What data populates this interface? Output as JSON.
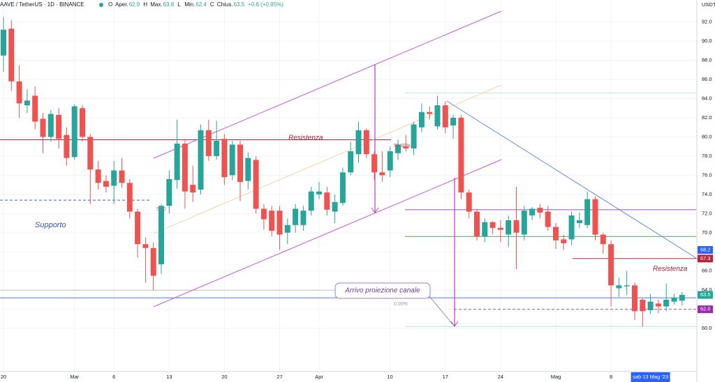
{
  "chart_data": {
    "type": "candlestick",
    "symbol": "AAVE / TetherUS · 1D · BINANCE",
    "ohlc_legend": [
      {
        "key": "O",
        "label": "Aper.",
        "value": 62.9
      },
      {
        "key": "H",
        "label": "Max.",
        "value": 63.8
      },
      {
        "key": "L",
        "label": "Min.",
        "value": 62.4
      },
      {
        "key": "C",
        "label": "Chius.",
        "value": 63.5
      }
    ],
    "change": "+0.6 (+0.95%)",
    "currency": "USDT",
    "x": [
      "2023-02-20",
      "2023-02-21",
      "2023-02-22",
      "2023-02-23",
      "2023-02-24",
      "2023-02-25",
      "2023-02-26",
      "2023-02-27",
      "2023-02-28",
      "2023-03-01",
      "2023-03-02",
      "2023-03-03",
      "2023-03-04",
      "2023-03-05",
      "2023-03-06",
      "2023-03-07",
      "2023-03-08",
      "2023-03-09",
      "2023-03-10",
      "2023-03-11",
      "2023-03-12",
      "2023-03-13",
      "2023-03-14",
      "2023-03-15",
      "2023-03-16",
      "2023-03-17",
      "2023-03-18",
      "2023-03-19",
      "2023-03-20",
      "2023-03-21",
      "2023-03-22",
      "2023-03-23",
      "2023-03-24",
      "2023-03-25",
      "2023-03-26",
      "2023-03-27",
      "2023-03-28",
      "2023-03-29",
      "2023-03-30",
      "2023-03-31",
      "2023-04-01",
      "2023-04-02",
      "2023-04-03",
      "2023-04-04",
      "2023-04-05",
      "2023-04-06",
      "2023-04-07",
      "2023-04-08",
      "2023-04-09",
      "2023-04-10",
      "2023-04-11",
      "2023-04-12",
      "2023-04-13",
      "2023-04-14",
      "2023-04-15",
      "2023-04-16",
      "2023-04-17",
      "2023-04-18",
      "2023-04-19",
      "2023-04-20",
      "2023-04-21",
      "2023-04-22",
      "2023-04-23",
      "2023-04-24",
      "2023-04-25",
      "2023-04-26",
      "2023-04-27",
      "2023-04-28",
      "2023-04-29",
      "2023-04-30",
      "2023-05-01",
      "2023-05-02",
      "2023-05-03",
      "2023-05-04",
      "2023-05-05",
      "2023-05-06",
      "2023-05-07",
      "2023-05-08",
      "2023-05-09",
      "2023-05-10",
      "2023-05-11",
      "2023-05-12",
      "2023-05-13",
      "2023-05-14",
      "2023-05-15",
      "2023-05-16",
      "2023-05-17"
    ],
    "open": [
      88.5,
      91.3,
      85.8,
      83.3,
      84.3,
      81.9,
      80,
      82.3,
      80.2,
      77.9,
      83,
      80,
      76.6,
      75.4,
      74.9,
      76.5,
      75.2,
      72.2,
      68.8,
      68.4,
      66.7,
      72.8,
      75.5,
      79.3,
      75,
      74.5,
      80.7,
      78,
      79.8,
      76,
      79.2,
      75.4,
      77.6,
      72.5,
      72.3,
      72.3,
      70,
      70.8,
      70.8,
      72.3,
      74,
      74.2,
      72.2,
      73.1,
      76.3,
      78.2,
      80.7,
      78.2,
      76.3,
      76.5,
      78.3,
      79,
      78.8,
      81,
      82.6,
      81.1,
      83.3,
      81.2,
      82,
      74.2,
      72.2,
      69.6,
      71.1,
      70.5,
      69.8,
      71.3,
      69.8,
      71.8,
      72.6,
      72.2,
      70.6,
      69.3,
      69.3,
      71,
      70.8,
      73.5,
      69.8,
      68.8,
      64.2,
      64.4,
      64.5,
      63,
      61.9,
      62.6,
      62.3,
      62.8,
      62.9
    ],
    "high": [
      92.5,
      92.2,
      87.5,
      85,
      85.3,
      82.5,
      82.8,
      83,
      81,
      83.4,
      83.3,
      80.3,
      77.5,
      76,
      77.5,
      77.8,
      75.6,
      72.5,
      69.5,
      69,
      73,
      76.5,
      81.8,
      79.8,
      77,
      81.3,
      81.8,
      81.7,
      80.3,
      79.6,
      79.6,
      78.4,
      78,
      73,
      72.8,
      72.8,
      71.5,
      73,
      72.8,
      74.8,
      75.3,
      74.8,
      74,
      76.8,
      79.5,
      81.6,
      80.9,
      78.5,
      78.5,
      79,
      79.7,
      80.2,
      81.6,
      83.5,
      83.2,
      84.3,
      83.7,
      82.3,
      82.3,
      74.5,
      72.5,
      71.5,
      71.2,
      71.3,
      71.8,
      74.8,
      72.8,
      72.7,
      73,
      72.8,
      71,
      69.8,
      72.2,
      72.1,
      74.3,
      73.8,
      70,
      69.2,
      65.3,
      66,
      64.8,
      63.2,
      63.6,
      63,
      64.7,
      63.6,
      63.8
    ],
    "low": [
      86.8,
      84.8,
      82,
      82.5,
      80.8,
      78.3,
      79.5,
      78.8,
      77,
      77.6,
      79.5,
      73,
      74.5,
      74.2,
      73,
      74.7,
      71.5,
      67.4,
      64.8,
      64,
      65.7,
      72,
      74.6,
      72.5,
      73.2,
      74,
      77.5,
      77.6,
      75,
      75.5,
      73.3,
      74.5,
      72,
      70.3,
      69.6,
      68.2,
      68.8,
      70,
      70.2,
      71.8,
      73.5,
      71.8,
      71,
      72.8,
      76,
      77.3,
      77.8,
      75.5,
      75.3,
      75.8,
      77.6,
      78.5,
      78.1,
      80.5,
      81.8,
      80.8,
      80.4,
      79.8,
      73.5,
      71.5,
      69.2,
      69,
      69.8,
      69,
      68.5,
      66.2,
      69.2,
      71.3,
      71.5,
      70.2,
      68.3,
      68.2,
      68.7,
      70.5,
      70.5,
      69.2,
      67.8,
      62.3,
      63.3,
      63.5,
      60.9,
      60.2,
      61.5,
      61.6,
      61.8,
      62.5,
      62.4
    ],
    "close": [
      91.2,
      85.8,
      83.5,
      83.8,
      81.6,
      80,
      82.4,
      79.8,
      77.8,
      83.2,
      80,
      76.6,
      75.2,
      74.8,
      76.5,
      75.2,
      72.2,
      68.8,
      68.4,
      65.5,
      72.8,
      75.6,
      79.3,
      74.3,
      74.2,
      80.7,
      78,
      79.6,
      75.8,
      79.2,
      75.3,
      77.8,
      72.5,
      71.4,
      70.2,
      69.8,
      70.8,
      72.5,
      72.3,
      74.3,
      74.3,
      72.4,
      73.2,
      76.3,
      78.5,
      80.7,
      78.2,
      76.3,
      76,
      78.5,
      79.2,
      78.8,
      81.3,
      82.6,
      82.4,
      83.3,
      81,
      82,
      74.2,
      72.2,
      69.6,
      71.1,
      70.5,
      70.3,
      71.3,
      70,
      72.3,
      72.5,
      72.1,
      70.6,
      69.2,
      68.9,
      71.8,
      71.3,
      73.5,
      69.8,
      68.8,
      64.5,
      64.5,
      64.5,
      61.8,
      61.8,
      62.8,
      62.3,
      63,
      63.2,
      63.5
    ],
    "up_color": "#26a69a",
    "down_color": "#ef5350",
    "ylim": [
      55.5,
      94.3
    ],
    "yticks": [
      {
        "value": 60,
        "label": "60.0"
      },
      {
        "value": 62,
        "label": "62.0"
      },
      {
        "value": 64,
        "label": "64.0"
      },
      {
        "value": 66,
        "label": "66.0"
      },
      {
        "value": 68,
        "label": "68.0"
      },
      {
        "value": 70,
        "label": "70.0"
      },
      {
        "value": 72,
        "label": "72.0"
      },
      {
        "value": 74,
        "label": "74.0"
      },
      {
        "value": 76,
        "label": "76.0"
      },
      {
        "value": 78,
        "label": "78.0"
      },
      {
        "value": 80,
        "label": "80.0"
      },
      {
        "value": 82,
        "label": "82.0"
      },
      {
        "value": 84,
        "label": "84.0"
      },
      {
        "value": 86,
        "label": "86.0"
      },
      {
        "value": 88,
        "label": "88.0"
      },
      {
        "value": 90,
        "label": "90.0"
      },
      {
        "value": 92,
        "label": "92.0"
      }
    ],
    "xticks": [
      {
        "value": "2023-02-20",
        "label": "20"
      },
      {
        "value": "2023-03-01",
        "label": "Mar"
      },
      {
        "value": "2023-03-06",
        "label": "6"
      },
      {
        "value": "2023-03-13",
        "label": "13"
      },
      {
        "value": "2023-03-20",
        "label": "20"
      },
      {
        "value": "2023-03-27",
        "label": "27"
      },
      {
        "value": "2023-04-01",
        "label": "Apr"
      },
      {
        "value": "2023-04-10",
        "label": "10"
      },
      {
        "value": "2023-04-17",
        "label": "17"
      },
      {
        "value": "2023-04-24",
        "label": "24"
      },
      {
        "value": "2023-05-01",
        "label": "Mag"
      },
      {
        "value": "2023-05-08",
        "label": "8"
      }
    ],
    "crosshair": {
      "x": "2023-05-13",
      "label": "sab 13 Mag '23"
    },
    "grid": true,
    "levels": [
      {
        "value": 79.7,
        "color": "#b2283a"
      },
      {
        "value": 73.4,
        "color": "#3b5fc0",
        "dashed": true
      },
      {
        "value": 84.6,
        "color": "#b9e3dc"
      },
      {
        "value": 72.4,
        "color": "#9c4fc4"
      },
      {
        "value": 69.6,
        "color": "#5a9e5a"
      },
      {
        "value": 67.3,
        "color": "#b2283a"
      },
      {
        "value": 63.2,
        "color": "#4a7fe0"
      },
      {
        "value": 62.0,
        "color": "#9c4fc4",
        "dashed": true
      },
      {
        "value": 64.0,
        "color": "#c0c0c0"
      },
      {
        "value": 60.2,
        "color": "#b9e3dc"
      }
    ],
    "price_labels": [
      {
        "value": 68.2,
        "label": "68.2",
        "color": "#2962ff"
      },
      {
        "value": 67.3,
        "label": "67.3",
        "color": "#b2283a"
      },
      {
        "value": 63.5,
        "label": "63.5",
        "color": "#26a69a"
      },
      {
        "value": 62.0,
        "label": "62.0",
        "color": "#9c27b0"
      }
    ],
    "annotations": {
      "resistance_1": "Resistenza",
      "support": "Supporto",
      "resistance_2": "Resistenza",
      "callout": "Arrivo proiezione canale",
      "fib_50": "50.00%",
      "fib_0": "0.00%",
      "fib_50_left": "50.0"
    }
  }
}
